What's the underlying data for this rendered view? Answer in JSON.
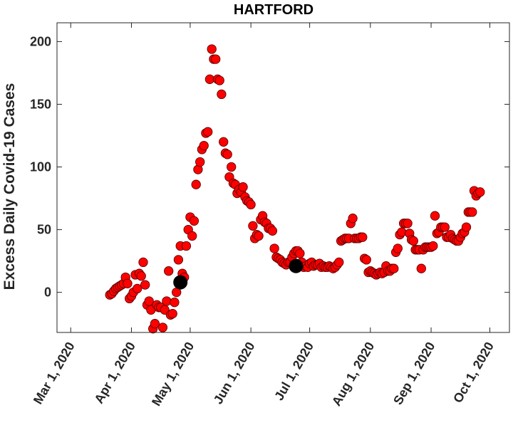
{
  "chart_data": {
    "type": "scatter",
    "title": "HARTFORD",
    "xlabel": "",
    "ylabel": "Excess Daily Covid-19 Cases",
    "ylim": [
      -32,
      215
    ],
    "xlim": [
      "2020-02-23",
      "2020-10-11"
    ],
    "y_ticks": [
      0,
      50,
      100,
      150,
      200
    ],
    "x_ticks": [
      "2020-03-01",
      "2020-04-01",
      "2020-05-01",
      "2020-06-01",
      "2020-07-01",
      "2020-08-01",
      "2020-09-01",
      "2020-10-01"
    ],
    "x_tick_labels": [
      "Mar 1, 2020",
      "Apr 1, 2020",
      "May 1, 2020",
      "Jun 1, 2020",
      "Jul 1, 2020",
      "Aug 1, 2020",
      "Sep 1, 2020",
      "Oct 1, 2020"
    ],
    "grid": false,
    "box": true,
    "colors": {
      "points": "#ff0000",
      "highlight": "#000000",
      "axes": "#262626"
    },
    "series": [
      {
        "marker": "red-circle",
        "points": [
          [
            "2020-03-21",
            -2
          ],
          [
            "2020-03-22",
            -1
          ],
          [
            "2020-03-23",
            1
          ],
          [
            "2020-03-24",
            3
          ],
          [
            "2020-03-25",
            4
          ],
          [
            "2020-03-26",
            5
          ],
          [
            "2020-03-27",
            6
          ],
          [
            "2020-03-28",
            7
          ],
          [
            "2020-03-29",
            12
          ],
          [
            "2020-03-30",
            7
          ],
          [
            "2020-03-31",
            -5
          ],
          [
            "2020-04-01",
            -3
          ],
          [
            "2020-04-02",
            0
          ],
          [
            "2020-04-03",
            14
          ],
          [
            "2020-04-04",
            3
          ],
          [
            "2020-04-05",
            15
          ],
          [
            "2020-04-06",
            13
          ],
          [
            "2020-04-07",
            24
          ],
          [
            "2020-04-08",
            6
          ],
          [
            "2020-04-09",
            -10
          ],
          [
            "2020-04-10",
            -7
          ],
          [
            "2020-04-11",
            -14
          ],
          [
            "2020-04-12",
            -29
          ],
          [
            "2020-04-13",
            -25
          ],
          [
            "2020-04-14",
            -10
          ],
          [
            "2020-04-15",
            -12
          ],
          [
            "2020-04-16",
            -12
          ],
          [
            "2020-04-17",
            -28
          ],
          [
            "2020-04-18",
            -14
          ],
          [
            "2020-04-19",
            -7
          ],
          [
            "2020-04-20",
            17
          ],
          [
            "2020-04-21",
            -18
          ],
          [
            "2020-04-22",
            -17
          ],
          [
            "2020-04-23",
            -8
          ],
          [
            "2020-04-24",
            0
          ],
          [
            "2020-04-25",
            26
          ],
          [
            "2020-04-26",
            37
          ],
          [
            "2020-04-27",
            15
          ],
          [
            "2020-04-28",
            12
          ],
          [
            "2020-04-29",
            37
          ],
          [
            "2020-04-30",
            50
          ],
          [
            "2020-05-01",
            60
          ],
          [
            "2020-05-02",
            45
          ],
          [
            "2020-05-03",
            57
          ],
          [
            "2020-05-04",
            86
          ],
          [
            "2020-05-05",
            98
          ],
          [
            "2020-05-06",
            104
          ],
          [
            "2020-05-07",
            114
          ],
          [
            "2020-05-08",
            117
          ],
          [
            "2020-05-09",
            127
          ],
          [
            "2020-05-10",
            128
          ],
          [
            "2020-05-11",
            170
          ],
          [
            "2020-05-12",
            194
          ],
          [
            "2020-05-13",
            186
          ],
          [
            "2020-05-14",
            186
          ],
          [
            "2020-05-15",
            170
          ],
          [
            "2020-05-16",
            169
          ],
          [
            "2020-05-17",
            158
          ],
          [
            "2020-05-18",
            120
          ],
          [
            "2020-05-19",
            111
          ],
          [
            "2020-05-20",
            110
          ],
          [
            "2020-05-21",
            92
          ],
          [
            "2020-05-22",
            100
          ],
          [
            "2020-05-23",
            87
          ],
          [
            "2020-05-24",
            86
          ],
          [
            "2020-05-25",
            79
          ],
          [
            "2020-05-26",
            82
          ],
          [
            "2020-05-27",
            80
          ],
          [
            "2020-05-28",
            84
          ],
          [
            "2020-05-29",
            76
          ],
          [
            "2020-05-30",
            73
          ],
          [
            "2020-05-31",
            72
          ],
          [
            "2020-06-01",
            70
          ],
          [
            "2020-06-02",
            53
          ],
          [
            "2020-06-03",
            43
          ],
          [
            "2020-06-04",
            46
          ],
          [
            "2020-06-05",
            45
          ],
          [
            "2020-06-06",
            58
          ],
          [
            "2020-06-07",
            61
          ],
          [
            "2020-06-08",
            56
          ],
          [
            "2020-06-09",
            55
          ],
          [
            "2020-06-10",
            51
          ],
          [
            "2020-06-11",
            51
          ],
          [
            "2020-06-12",
            49
          ],
          [
            "2020-06-13",
            35
          ],
          [
            "2020-06-14",
            28
          ],
          [
            "2020-06-15",
            27
          ],
          [
            "2020-06-16",
            26
          ],
          [
            "2020-06-17",
            24
          ],
          [
            "2020-06-18",
            23
          ],
          [
            "2020-06-19",
            22
          ],
          [
            "2020-06-20",
            24
          ],
          [
            "2020-06-21",
            24
          ],
          [
            "2020-06-22",
            28
          ],
          [
            "2020-06-23",
            31
          ],
          [
            "2020-06-24",
            33
          ],
          [
            "2020-06-25",
            33
          ],
          [
            "2020-06-26",
            31
          ],
          [
            "2020-06-27",
            24
          ],
          [
            "2020-06-28",
            20
          ],
          [
            "2020-06-29",
            21
          ],
          [
            "2020-06-30",
            20
          ],
          [
            "2020-07-01",
            23
          ],
          [
            "2020-07-02",
            24
          ],
          [
            "2020-07-03",
            21
          ],
          [
            "2020-07-04",
            22
          ],
          [
            "2020-07-05",
            22
          ],
          [
            "2020-07-06",
            23
          ],
          [
            "2020-07-07",
            20
          ],
          [
            "2020-07-08",
            21
          ],
          [
            "2020-07-09",
            20
          ],
          [
            "2020-07-10",
            20
          ],
          [
            "2020-07-11",
            21
          ],
          [
            "2020-07-12",
            20
          ],
          [
            "2020-07-13",
            19
          ],
          [
            "2020-07-14",
            20
          ],
          [
            "2020-07-15",
            22
          ],
          [
            "2020-07-16",
            24
          ],
          [
            "2020-07-17",
            41
          ],
          [
            "2020-07-18",
            42
          ],
          [
            "2020-07-19",
            43
          ],
          [
            "2020-07-20",
            43
          ],
          [
            "2020-07-21",
            43
          ],
          [
            "2020-07-22",
            55
          ],
          [
            "2020-07-23",
            59
          ],
          [
            "2020-07-24",
            43
          ],
          [
            "2020-07-25",
            43
          ],
          [
            "2020-07-26",
            43
          ],
          [
            "2020-07-27",
            44
          ],
          [
            "2020-07-28",
            44
          ],
          [
            "2020-07-29",
            27
          ],
          [
            "2020-07-30",
            26
          ],
          [
            "2020-07-31",
            16
          ],
          [
            "2020-08-01",
            17
          ],
          [
            "2020-08-02",
            16
          ],
          [
            "2020-08-03",
            15
          ],
          [
            "2020-08-04",
            14
          ],
          [
            "2020-08-05",
            15
          ],
          [
            "2020-08-06",
            16
          ],
          [
            "2020-08-07",
            15
          ],
          [
            "2020-08-08",
            16
          ],
          [
            "2020-08-09",
            21
          ],
          [
            "2020-08-10",
            17
          ],
          [
            "2020-08-11",
            17
          ],
          [
            "2020-08-12",
            19
          ],
          [
            "2020-08-13",
            19
          ],
          [
            "2020-08-14",
            32
          ],
          [
            "2020-08-15",
            35
          ],
          [
            "2020-08-16",
            46
          ],
          [
            "2020-08-17",
            48
          ],
          [
            "2020-08-18",
            55
          ],
          [
            "2020-08-19",
            55
          ],
          [
            "2020-08-20",
            55
          ],
          [
            "2020-08-21",
            47
          ],
          [
            "2020-08-22",
            42
          ],
          [
            "2020-08-23",
            41
          ],
          [
            "2020-08-24",
            34
          ],
          [
            "2020-08-25",
            34
          ],
          [
            "2020-08-26",
            34
          ],
          [
            "2020-08-27",
            19
          ],
          [
            "2020-08-28",
            34
          ],
          [
            "2020-08-29",
            36
          ],
          [
            "2020-08-30",
            36
          ],
          [
            "2020-08-31",
            36
          ],
          [
            "2020-09-01",
            36
          ],
          [
            "2020-09-02",
            37
          ],
          [
            "2020-09-03",
            61
          ],
          [
            "2020-09-04",
            47
          ],
          [
            "2020-09-05",
            48
          ],
          [
            "2020-09-06",
            52
          ],
          [
            "2020-09-07",
            52
          ],
          [
            "2020-09-08",
            52
          ],
          [
            "2020-09-09",
            44
          ],
          [
            "2020-09-10",
            44
          ],
          [
            "2020-09-11",
            46
          ],
          [
            "2020-09-12",
            43
          ],
          [
            "2020-09-13",
            42
          ],
          [
            "2020-09-14",
            41
          ],
          [
            "2020-09-15",
            41
          ],
          [
            "2020-09-16",
            44
          ],
          [
            "2020-09-17",
            47
          ],
          [
            "2020-09-18",
            48
          ],
          [
            "2020-09-19",
            52
          ],
          [
            "2020-09-20",
            64
          ],
          [
            "2020-09-21",
            64
          ],
          [
            "2020-09-22",
            64
          ],
          [
            "2020-09-23",
            81
          ],
          [
            "2020-09-24",
            77
          ],
          [
            "2020-09-25",
            79
          ],
          [
            "2020-09-26",
            80
          ]
        ]
      },
      {
        "marker": "black-circle",
        "points": [
          [
            "2020-04-26",
            8
          ],
          [
            "2020-06-24",
            21
          ]
        ]
      }
    ]
  }
}
